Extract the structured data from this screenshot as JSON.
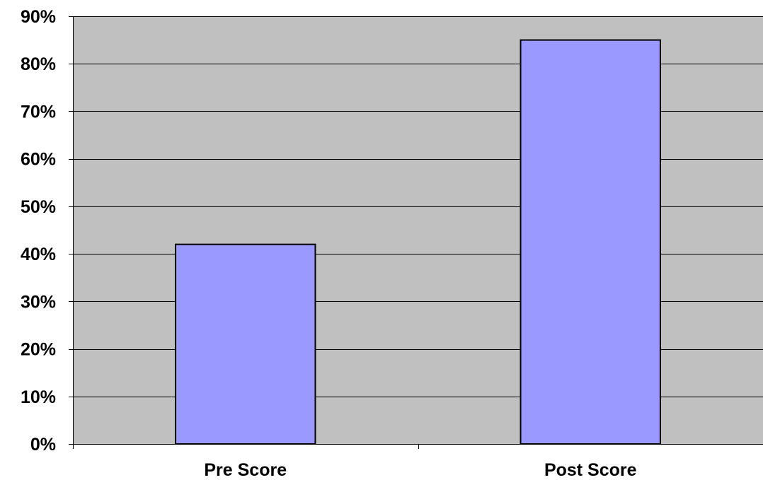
{
  "chart_data": {
    "type": "bar",
    "categories": [
      "Pre Score",
      "Post Score"
    ],
    "values": [
      42,
      85
    ],
    "value_unit": "percent",
    "ylim": [
      0,
      90
    ],
    "yticks": [
      0,
      10,
      20,
      30,
      40,
      50,
      60,
      70,
      80,
      90
    ],
    "ytick_labels": [
      "0%",
      "10%",
      "20%",
      "30%",
      "40%",
      "50%",
      "60%",
      "70%",
      "80%",
      "90%"
    ],
    "title": "",
    "xlabel": "",
    "ylabel": "",
    "grid": true,
    "legend": "none",
    "colors": {
      "plot_background": "#c0c0c0",
      "bar_fill": "#9999ff",
      "bar_stroke": "#000000",
      "gridline": "#000000"
    }
  }
}
